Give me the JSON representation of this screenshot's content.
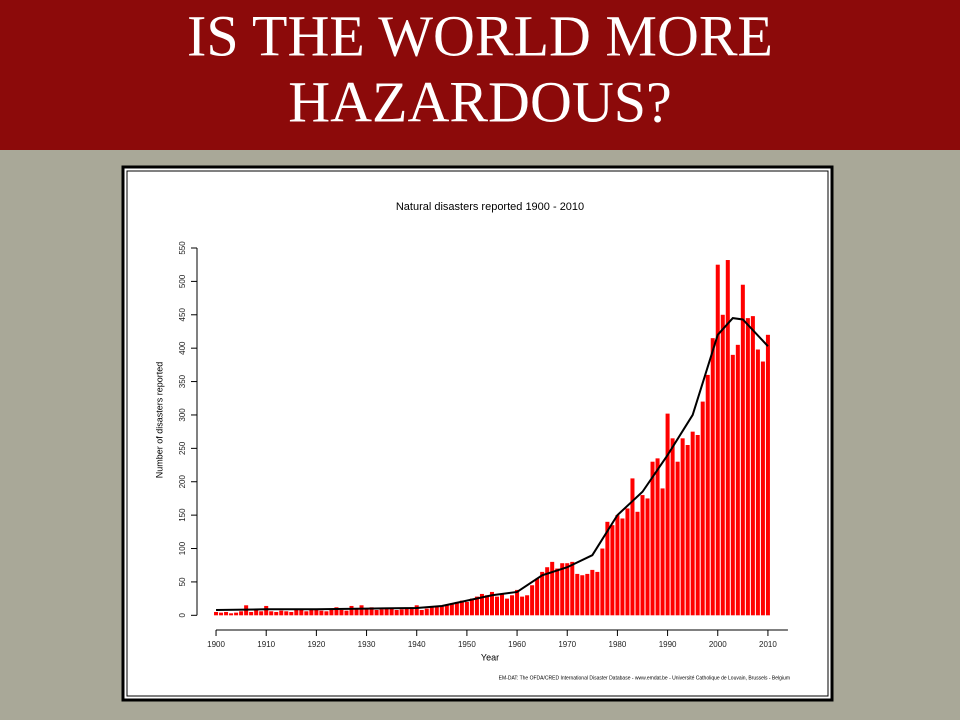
{
  "slide_title": [
    "IS THE WORLD MORE",
    "HAZARDOUS?"
  ],
  "chart_data": {
    "type": "bar",
    "title": "Natural disasters reported 1900 - 2010",
    "xlabel": "Year",
    "ylabel": "Number of disasters reported",
    "source": "EM-DAT: The OFDA/CRED International Disaster Database - www.emdat.be - Université Catholique de Louvain, Brussels - Belgium",
    "color": "#ff0000",
    "x": [
      1900,
      1901,
      1902,
      1903,
      1904,
      1905,
      1906,
      1907,
      1908,
      1909,
      1910,
      1911,
      1912,
      1913,
      1914,
      1915,
      1916,
      1917,
      1918,
      1919,
      1920,
      1921,
      1922,
      1923,
      1924,
      1925,
      1926,
      1927,
      1928,
      1929,
      1930,
      1931,
      1932,
      1933,
      1934,
      1935,
      1936,
      1937,
      1938,
      1939,
      1940,
      1941,
      1942,
      1943,
      1944,
      1945,
      1946,
      1947,
      1948,
      1949,
      1950,
      1951,
      1952,
      1953,
      1954,
      1955,
      1956,
      1957,
      1958,
      1959,
      1960,
      1961,
      1962,
      1963,
      1964,
      1965,
      1966,
      1967,
      1968,
      1969,
      1970,
      1971,
      1972,
      1973,
      1974,
      1975,
      1976,
      1977,
      1978,
      1979,
      1980,
      1981,
      1982,
      1983,
      1984,
      1985,
      1986,
      1987,
      1988,
      1989,
      1990,
      1991,
      1992,
      1993,
      1994,
      1995,
      1996,
      1997,
      1998,
      1999,
      2000,
      2001,
      2002,
      2003,
      2004,
      2005,
      2006,
      2007,
      2008,
      2009,
      2010
    ],
    "values": [
      5,
      4,
      5,
      3,
      4,
      6,
      15,
      5,
      8,
      6,
      14,
      6,
      5,
      7,
      6,
      5,
      8,
      9,
      6,
      10,
      8,
      7,
      6,
      9,
      12,
      8,
      7,
      14,
      10,
      15,
      10,
      12,
      8,
      9,
      10,
      11,
      8,
      9,
      10,
      12,
      15,
      8,
      10,
      12,
      13,
      14,
      16,
      18,
      20,
      22,
      20,
      25,
      28,
      32,
      30,
      35,
      28,
      32,
      25,
      30,
      38,
      28,
      30,
      45,
      55,
      65,
      72,
      80,
      70,
      78,
      78,
      80,
      62,
      60,
      62,
      68,
      65,
      100,
      140,
      135,
      150,
      145,
      160,
      205,
      155,
      180,
      175,
      230,
      235,
      190,
      302,
      265,
      230,
      265,
      255,
      275,
      270,
      320,
      360,
      415,
      525,
      450,
      532,
      390,
      405,
      495,
      445,
      448,
      398,
      380,
      420
    ],
    "smooth": {
      "color": "#000000",
      "x": [
        1900,
        1910,
        1920,
        1930,
        1940,
        1945,
        1950,
        1955,
        1960,
        1965,
        1970,
        1975,
        1980,
        1985,
        1990,
        1995,
        2000,
        2003,
        2005,
        2010
      ],
      "values": [
        8,
        9,
        9,
        10,
        11,
        14,
        22,
        30,
        35,
        60,
        72,
        90,
        150,
        185,
        240,
        300,
        420,
        445,
        443,
        403
      ]
    },
    "xlim": [
      1898,
      2014
    ],
    "ylim": [
      -22,
      550
    ],
    "xticks": [
      1900,
      1910,
      1920,
      1930,
      1940,
      1950,
      1960,
      1970,
      1980,
      1990,
      2000,
      2010
    ],
    "yticks": [
      0,
      50,
      100,
      150,
      200,
      250,
      300,
      350,
      400,
      450,
      500,
      550
    ]
  }
}
